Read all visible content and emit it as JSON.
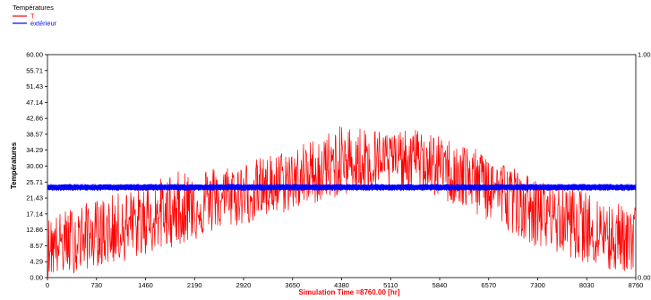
{
  "chart_data": {
    "type": "line",
    "legend_title": "Températures",
    "legend_position": "top-left",
    "xlabel": "Simulation Time =8760.00 [hr]",
    "ylabel": "Températures",
    "xlim": [
      0,
      8760
    ],
    "ylim": [
      0,
      60
    ],
    "y2lim": [
      0,
      1
    ],
    "grid": false,
    "x_ticks": [
      "0",
      "730",
      "1460",
      "2190",
      "2920",
      "3650",
      "4380",
      "5110",
      "5840",
      "6570",
      "7300",
      "8030",
      "8760"
    ],
    "y_ticks": [
      "0.00",
      "4.29",
      "8.57",
      "12.86",
      "17.14",
      "21.43",
      "25.71",
      "30.00",
      "34.29",
      "38.57",
      "42.86",
      "47.14",
      "51.43",
      "55.71",
      "60.00"
    ],
    "y2_ticks": [
      "0.00",
      "1.00"
    ],
    "x": [
      0,
      365,
      730,
      1095,
      1460,
      1825,
      2190,
      2555,
      2920,
      3285,
      3650,
      4015,
      4380,
      4745,
      5110,
      5475,
      5840,
      6205,
      6570,
      6935,
      7300,
      7665,
      8030,
      8395,
      8760
    ],
    "series": [
      {
        "name": "T",
        "color": "#ff0000",
        "mean": [
          9,
          10,
          11,
          13,
          15,
          17,
          19,
          21,
          22,
          24,
          26,
          28,
          30,
          31,
          32,
          32,
          30,
          28,
          26,
          22,
          19,
          16,
          14,
          12,
          11
        ],
        "min": [
          0,
          1,
          3,
          4,
          6,
          8,
          10,
          13,
          14,
          16,
          18,
          20,
          22,
          23,
          23,
          24,
          21,
          18,
          15,
          12,
          8,
          6,
          4,
          1,
          2
        ],
        "max": [
          16,
          19,
          21,
          23,
          25,
          28,
          30,
          30,
          31,
          33,
          35,
          38,
          41,
          41,
          39,
          40,
          38,
          36,
          33,
          30,
          26,
          25,
          23,
          20,
          20
        ]
      },
      {
        "name": "extérieur",
        "color": "#0000ff",
        "mean": [
          24.3,
          24.3,
          24.3,
          24.3,
          24.3,
          24.3,
          24.3,
          24.3,
          24.3,
          24.3,
          24.3,
          24.3,
          24.3,
          24.3,
          24.3,
          24.3,
          24.3,
          24.3,
          24.3,
          24.3,
          24.3,
          24.3,
          24.3,
          24.3,
          24.3
        ],
        "min": [
          23.4,
          23.4,
          23.4,
          23.4,
          23.4,
          23.4,
          23.4,
          23.4,
          23.4,
          23.4,
          23.4,
          23.4,
          23.4,
          23.4,
          23.4,
          23.4,
          23.4,
          23.4,
          23.4,
          23.4,
          23.4,
          23.4,
          23.4,
          23.4,
          23.4
        ],
        "max": [
          25.2,
          25.2,
          25.2,
          25.2,
          25.2,
          25.2,
          25.2,
          25.2,
          25.2,
          25.2,
          25.2,
          25.2,
          25.2,
          25.2,
          25.2,
          25.2,
          25.2,
          25.2,
          25.2,
          25.2,
          25.2,
          25.2,
          25.2,
          25.2,
          25.2
        ]
      }
    ]
  }
}
